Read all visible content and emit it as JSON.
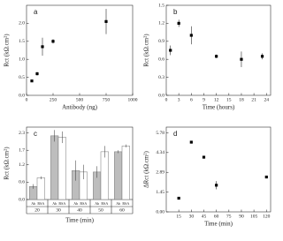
{
  "chart_data": [
    {
      "type": "scatter",
      "label": "a",
      "xlabel": "Antibody (ng)",
      "ylabel": "Rct (kΩ.cm²)",
      "x": [
        50,
        100,
        150,
        250,
        750
      ],
      "values": [
        0.4,
        0.6,
        1.35,
        1.5,
        2.05
      ],
      "errors": [
        0.03,
        0.05,
        0.25,
        0.06,
        0.35
      ],
      "color": "#000000",
      "xlim": [
        0,
        1000
      ],
      "xticks": [
        0,
        250,
        500,
        750,
        1000
      ],
      "ylim": [
        0,
        2.5
      ],
      "yticks": [
        {
          "value": 0,
          "label": "0.0"
        },
        0.5,
        {
          "value": 1,
          "label": "1.0"
        },
        1.5,
        {
          "value": 2,
          "label": "2.0"
        }
      ]
    },
    {
      "type": "scatter",
      "label": "b",
      "xlabel": "Time (hours)",
      "ylabel": "Rct (kΩ.cm²)",
      "x": [
        1,
        3,
        6,
        12,
        18,
        23
      ],
      "values": [
        0.75,
        1.2,
        1.0,
        0.65,
        0.6,
        0.65
      ],
      "errors": [
        0.08,
        0.06,
        0.15,
        0.03,
        0.13,
        0.05
      ],
      "color": "#000000",
      "xlim": [
        0,
        25
      ],
      "xticks": [
        0,
        3,
        6,
        9,
        12,
        15,
        18,
        21,
        24
      ],
      "ylim": [
        0,
        1.5
      ],
      "yticks": [
        {
          "value": 0,
          "label": "0.0"
        },
        0.3,
        0.6,
        0.9,
        1.2,
        1.5
      ]
    },
    {
      "type": "bar",
      "label": "c",
      "xlabel": "Time (min)",
      "ylabel": "Rct (kΩ.cm²)",
      "categories": [
        "20",
        "30",
        "40",
        "50",
        "60"
      ],
      "series": [
        {
          "name": "Ab",
          "color": "#bdbdbd",
          "values": [
            0.45,
            2.2,
            1.0,
            0.95,
            1.65
          ],
          "errors": [
            0.08,
            0.2,
            0.35,
            0.2,
            0.05
          ]
        },
        {
          "name": "BSA",
          "color": "#ffffff",
          "values": [
            0.75,
            2.15,
            0.95,
            1.65,
            1.85
          ],
          "errors": [
            0.05,
            0.2,
            0.25,
            0.2,
            0.05
          ]
        }
      ],
      "ylim": [
        0,
        2.5
      ],
      "yticks": [
        {
          "value": 0,
          "label": "0.0"
        },
        0.6,
        1.2,
        1.7,
        2.3
      ]
    },
    {
      "type": "scatter",
      "label": "d",
      "xlabel": "Time (min)",
      "ylabel": "ΔRct (kΩ.cm²)",
      "x": [
        15,
        30,
        45,
        60,
        120
      ],
      "values": [
        1.0,
        5.1,
        4.0,
        1.95,
        2.55
      ],
      "errors": [
        0,
        0.1,
        0,
        0.3,
        0
      ],
      "color": "#000000",
      "xlim": [
        0,
        125
      ],
      "xticks": [
        15,
        30,
        45,
        60,
        75,
        90,
        105,
        120
      ],
      "ylim": [
        0,
        6.2
      ],
      "yticks": [
        {
          "value": 0,
          "label": "0.00"
        },
        1.45,
        2.89,
        4.34,
        5.78
      ]
    }
  ]
}
